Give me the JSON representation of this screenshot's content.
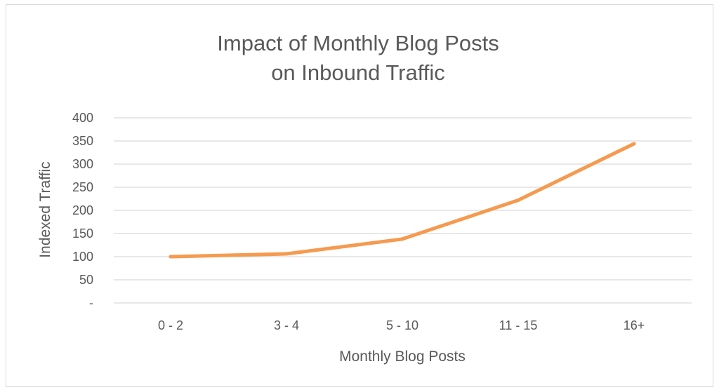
{
  "chart_data": {
    "type": "line",
    "title_lines": [
      "Impact of Monthly Blog Posts",
      "on Inbound Traffic"
    ],
    "xlabel": "Monthly Blog Posts",
    "ylabel": "Indexed Traffic",
    "categories": [
      "0 - 2",
      "3 - 4",
      "5 - 10",
      "11 - 15",
      "16+"
    ],
    "series": [
      {
        "values": [
          100,
          106,
          138,
          222,
          344
        ]
      }
    ],
    "ylim": [
      0,
      400
    ],
    "yticks": [
      0,
      50,
      100,
      150,
      200,
      250,
      300,
      350,
      400
    ],
    "ytick_labels": [
      "-",
      "50",
      "100",
      "150",
      "200",
      "250",
      "300",
      "350",
      "400"
    ],
    "grid": true,
    "legend": "none"
  },
  "colors": {
    "series": "#f59a4f"
  }
}
